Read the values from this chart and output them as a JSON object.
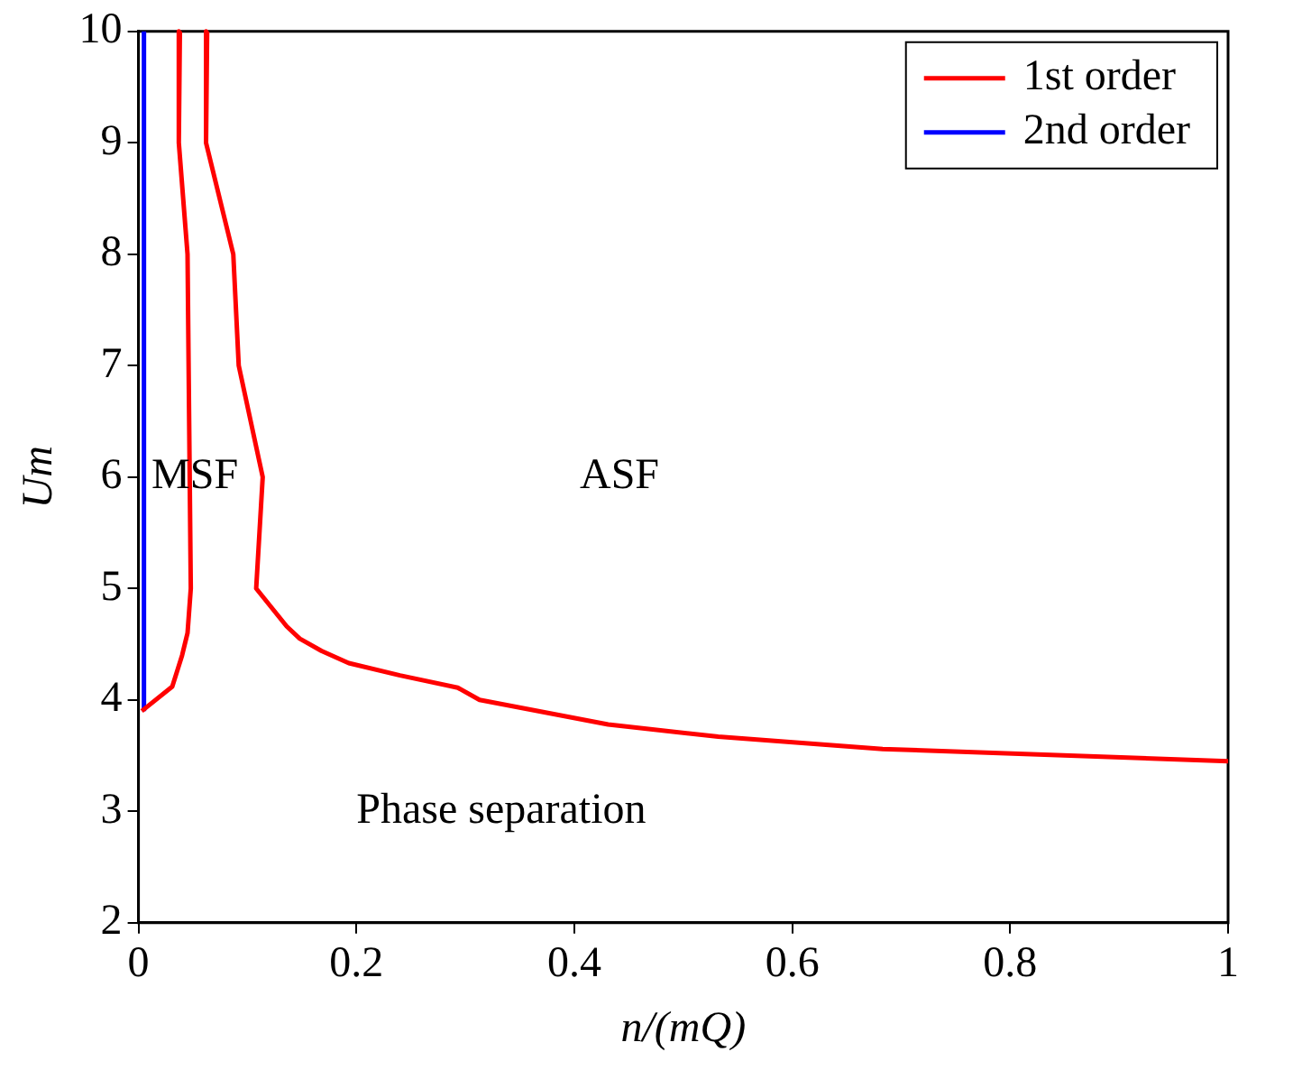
{
  "chart_data": {
    "type": "line",
    "xlabel": "n/(mQ)",
    "ylabel": "Um",
    "xlim": [
      0,
      1
    ],
    "ylim": [
      2,
      10
    ],
    "xticks": [
      0,
      0.2,
      0.4,
      0.6,
      0.8,
      1
    ],
    "yticks": [
      2,
      3,
      4,
      5,
      6,
      7,
      8,
      9,
      10
    ],
    "grid": false,
    "legend": "top right",
    "marker": "none",
    "line_style": "solid",
    "series": [
      {
        "name": "1st order",
        "color": "#ff0000",
        "x": [
          0.038,
          0.037,
          0.045,
          0.048,
          0.045,
          0.04,
          0.031,
          0.003
        ],
        "values": [
          10,
          9,
          8,
          5,
          4.6,
          4.4,
          4.12,
          3.9
        ]
      },
      {
        "color": "#ff0000",
        "x": [
          0.063,
          0.062,
          0.087,
          0.092,
          0.114,
          0.108,
          0.136,
          0.148,
          0.168,
          0.193,
          0.24,
          0.293,
          0.313,
          0.431,
          0.532,
          0.683,
          1
        ],
        "values": [
          10,
          9,
          8,
          7,
          6,
          5,
          4.66,
          4.55,
          4.44,
          4.33,
          4.22,
          4.11,
          4,
          3.78,
          3.67,
          3.56,
          3.45
        ]
      },
      {
        "name": "2nd order",
        "color": "#0000ff",
        "x": [
          0.005,
          0.005
        ],
        "values": [
          3.9,
          10
        ]
      }
    ],
    "annotations": [
      "MSF",
      "ASF",
      "Phase separation"
    ]
  }
}
